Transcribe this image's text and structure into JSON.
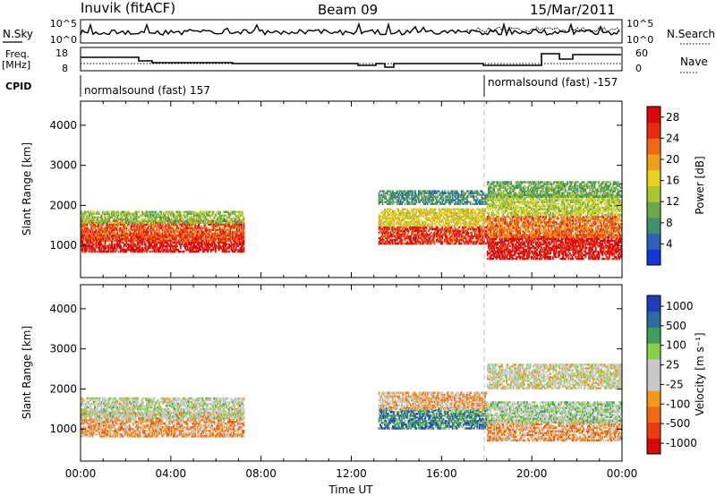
{
  "header": {
    "station": "Inuvik (fitACF)",
    "beam": "Beam 09",
    "date": "15/Mar/2011"
  },
  "top_panels": {
    "nsky_label": "N.Sky",
    "nsky_top_tick": "10^5",
    "nsky_bottom_tick": "10^0",
    "nsearch_label": "N.Search",
    "nsearch_top_tick": "10^5",
    "nsearch_bottom_tick": "10^0",
    "freq_label_line1": "Freq.",
    "freq_label_line2": "[MHz]",
    "freq_ticks": [
      "18",
      "8"
    ],
    "nave_label": "Nave",
    "nave_ticks": [
      "60",
      "0"
    ],
    "cpid_label": "CPID",
    "cpid_1": "normalsound (fast) 157",
    "cpid_2": "normalsound (fast) -157"
  },
  "colors": {
    "power_scale": [
      "#1535d8",
      "#2a62b8",
      "#3f8f6b",
      "#6aa84a",
      "#a8c832",
      "#e8d020",
      "#f0a018",
      "#f06a14",
      "#e82a10",
      "#d80808"
    ],
    "velocity_scale": [
      "#d80808",
      "#ee3a10",
      "#f06a14",
      "#f09a18",
      "#c8c8c8",
      "#c8c8c8",
      "#86d04a",
      "#3f9f5a",
      "#2f6aa0",
      "#1c3fb8"
    ]
  },
  "chart_data": [
    {
      "type": "heatmap",
      "name": "power",
      "ylabel": "Slant Range [km]",
      "yticks": [
        "1000",
        "2000",
        "3000",
        "4000"
      ],
      "ylim": [
        200,
        4600
      ],
      "xlim": [
        0,
        24
      ],
      "colorbar": {
        "label": "Power [dB]",
        "ticks": [
          "4",
          "8",
          "12",
          "16",
          "20",
          "24",
          "28"
        ],
        "range": [
          0,
          30
        ]
      },
      "bands": [
        {
          "x": [
            0,
            7.2
          ],
          "center": 1050,
          "width": 220,
          "value": 28
        },
        {
          "x": [
            0,
            7.2
          ],
          "center": 1350,
          "width": 250,
          "value": 24
        },
        {
          "x": [
            0,
            7.2
          ],
          "center": 1700,
          "width": 150,
          "value": 12
        },
        {
          "x": [
            13.2,
            18
          ],
          "center": 1250,
          "width": 220,
          "value": 26
        },
        {
          "x": [
            13.2,
            18
          ],
          "center": 1700,
          "width": 220,
          "value": 16
        },
        {
          "x": [
            13.2,
            18
          ],
          "center": 2200,
          "width": 180,
          "value": 8
        },
        {
          "x": [
            18,
            24
          ],
          "center": 950,
          "width": 300,
          "value": 28
        },
        {
          "x": [
            18,
            24
          ],
          "center": 1450,
          "width": 250,
          "value": 22
        },
        {
          "x": [
            18,
            24
          ],
          "center": 2000,
          "width": 250,
          "value": 14
        },
        {
          "x": [
            18,
            24
          ],
          "center": 2400,
          "width": 200,
          "value": 10
        }
      ]
    },
    {
      "type": "heatmap",
      "name": "velocity",
      "ylabel": "Slant Range [km]",
      "yticks": [
        "1000",
        "2000",
        "3000",
        "4000"
      ],
      "ylim": [
        200,
        4600
      ],
      "xlim": [
        0,
        24
      ],
      "xticks": [
        "00:00",
        "04:00",
        "08:00",
        "12:00",
        "16:00",
        "20:00",
        "00:00"
      ],
      "xlabel": "Time UT",
      "colorbar": {
        "label": "Velocity [m s⁻¹]",
        "ticks": [
          "1000",
          "500",
          "100",
          "25",
          "-25",
          "-100",
          "-500",
          "-1000"
        ]
      },
      "bands": [
        {
          "x": [
            0,
            7.2
          ],
          "center": 1100,
          "width": 300,
          "value": -300
        },
        {
          "x": [
            0,
            7.2
          ],
          "center": 1500,
          "width": 250,
          "value": 100
        },
        {
          "x": [
            13.2,
            18
          ],
          "center": 1250,
          "width": 250,
          "value": 600
        },
        {
          "x": [
            13.2,
            18
          ],
          "center": 1700,
          "width": 220,
          "value": -200
        },
        {
          "x": [
            18,
            24
          ],
          "center": 950,
          "width": 250,
          "value": -300
        },
        {
          "x": [
            18,
            24
          ],
          "center": 1400,
          "width": 250,
          "value": 200
        },
        {
          "x": [
            18,
            24
          ],
          "center": 2300,
          "width": 300,
          "value": 0
        }
      ]
    }
  ]
}
